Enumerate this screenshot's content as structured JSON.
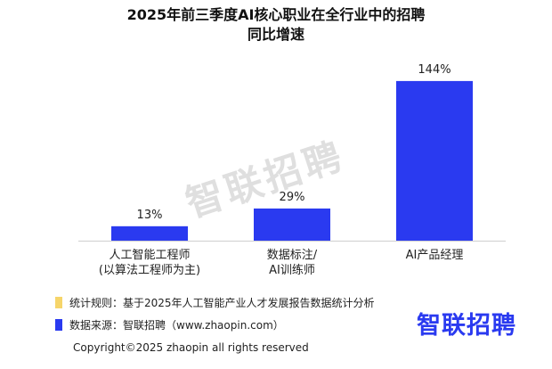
{
  "title_line1": "2025年前三季度AI核心职业在全行业中的招聘",
  "title_line2": "同比增速",
  "watermark": "智联招聘",
  "chart_data": {
    "type": "bar",
    "categories": [
      [
        "人工智能工程师",
        "(以算法工程师为主)"
      ],
      [
        "数据标注/",
        "AI训练师"
      ],
      [
        "AI产品经理"
      ]
    ],
    "values": [
      13,
      29,
      144
    ],
    "value_labels": [
      "13%",
      "29%",
      "144%"
    ],
    "unit": "%",
    "ylim": [
      0,
      160
    ],
    "bar_color": "#2a3af0",
    "grid": false
  },
  "footer": {
    "rule": "统计规则：基于2025年人工智能产业人才发展报告数据统计分析",
    "rule_color": "#f6d56a",
    "source": "数据来源：智联招聘（www.zhaopin.com）",
    "source_color": "#2a3af0",
    "copyright": "Copyright©2025 zhaopin all rights reserved",
    "logo": "智联招聘"
  }
}
